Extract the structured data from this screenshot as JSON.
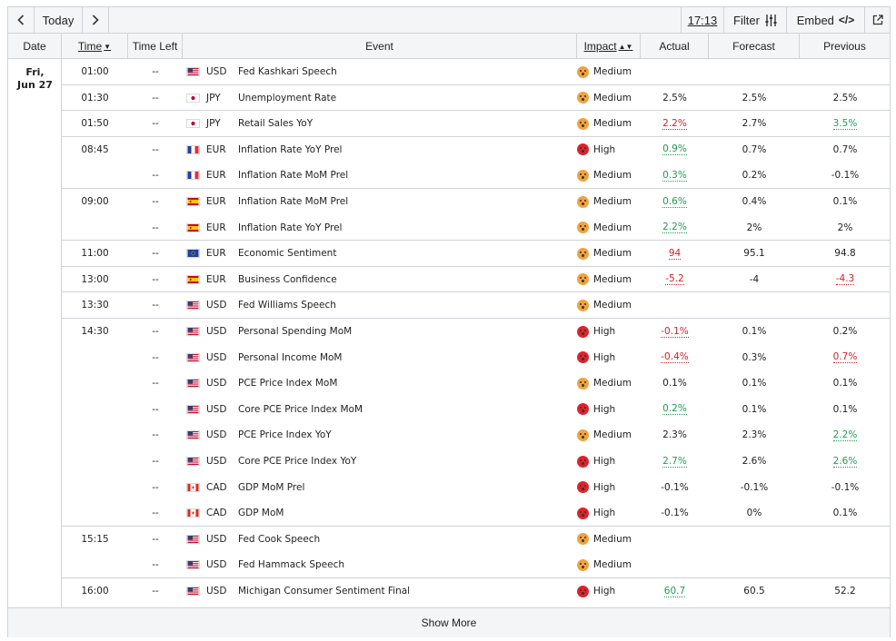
{
  "toolbar": {
    "today_label": "Today",
    "time_label": "17:13",
    "filter_label": "Filter",
    "embed_label": "Embed",
    "embed_code": "</>"
  },
  "columns": {
    "date": "Date",
    "time": "Time",
    "time_left": "Time Left",
    "event": "Event",
    "impact": "Impact",
    "actual": "Actual",
    "forecast": "Forecast",
    "previous": "Previous"
  },
  "date_group": {
    "line1": "Fri,",
    "line2": "Jun 27"
  },
  "groups": [
    {
      "time": "01:00",
      "rows": [
        {
          "time_left": "--",
          "flag": "us",
          "currency": "USD",
          "event": "Fed Kashkari Speech",
          "impact": "medium",
          "impact_label": "Medium",
          "actual": "",
          "actual_color": "",
          "forecast": "",
          "previous": "",
          "previous_color": ""
        }
      ]
    },
    {
      "time": "01:30",
      "rows": [
        {
          "time_left": "--",
          "flag": "jp",
          "currency": "JPY",
          "event": "Unemployment Rate",
          "impact": "medium",
          "impact_label": "Medium",
          "actual": "2.5%",
          "actual_color": "",
          "forecast": "2.5%",
          "previous": "2.5%",
          "previous_color": ""
        }
      ]
    },
    {
      "time": "01:50",
      "rows": [
        {
          "time_left": "--",
          "flag": "jp",
          "currency": "JPY",
          "event": "Retail Sales YoY",
          "impact": "medium",
          "impact_label": "Medium",
          "actual": "2.2%",
          "actual_color": "red",
          "forecast": "2.7%",
          "previous": "3.5%",
          "previous_color": "green"
        }
      ]
    },
    {
      "time": "08:45",
      "rows": [
        {
          "time_left": "--",
          "flag": "fr",
          "currency": "EUR",
          "event": "Inflation Rate YoY Prel",
          "impact": "high",
          "impact_label": "High",
          "actual": "0.9%",
          "actual_color": "green",
          "forecast": "0.7%",
          "previous": "0.7%",
          "previous_color": ""
        },
        {
          "time_left": "--",
          "flag": "fr",
          "currency": "EUR",
          "event": "Inflation Rate MoM Prel",
          "impact": "medium",
          "impact_label": "Medium",
          "actual": "0.3%",
          "actual_color": "green",
          "forecast": "0.2%",
          "previous": "-0.1%",
          "previous_color": ""
        }
      ]
    },
    {
      "time": "09:00",
      "rows": [
        {
          "time_left": "--",
          "flag": "es",
          "currency": "EUR",
          "event": "Inflation Rate MoM Prel",
          "impact": "medium",
          "impact_label": "Medium",
          "actual": "0.6%",
          "actual_color": "green",
          "forecast": "0.4%",
          "previous": "0.1%",
          "previous_color": ""
        },
        {
          "time_left": "--",
          "flag": "es",
          "currency": "EUR",
          "event": "Inflation Rate YoY Prel",
          "impact": "medium",
          "impact_label": "Medium",
          "actual": "2.2%",
          "actual_color": "green",
          "forecast": "2%",
          "previous": "2%",
          "previous_color": ""
        }
      ]
    },
    {
      "time": "11:00",
      "rows": [
        {
          "time_left": "--",
          "flag": "eu",
          "currency": "EUR",
          "event": "Economic Sentiment",
          "impact": "medium",
          "impact_label": "Medium",
          "actual": "94",
          "actual_color": "red",
          "forecast": "95.1",
          "previous": "94.8",
          "previous_color": ""
        }
      ]
    },
    {
      "time": "13:00",
      "rows": [
        {
          "time_left": "--",
          "flag": "es",
          "currency": "EUR",
          "event": "Business Confidence",
          "impact": "medium",
          "impact_label": "Medium",
          "actual": "-5.2",
          "actual_color": "red",
          "forecast": "-4",
          "previous": "-4.3",
          "previous_color": "red"
        }
      ]
    },
    {
      "time": "13:30",
      "rows": [
        {
          "time_left": "--",
          "flag": "us",
          "currency": "USD",
          "event": "Fed Williams Speech",
          "impact": "medium",
          "impact_label": "Medium",
          "actual": "",
          "actual_color": "",
          "forecast": "",
          "previous": "",
          "previous_color": ""
        }
      ]
    },
    {
      "time": "14:30",
      "rows": [
        {
          "time_left": "--",
          "flag": "us",
          "currency": "USD",
          "event": "Personal Spending MoM",
          "impact": "high",
          "impact_label": "High",
          "actual": "-0.1%",
          "actual_color": "red",
          "forecast": "0.1%",
          "previous": "0.2%",
          "previous_color": ""
        },
        {
          "time_left": "--",
          "flag": "us",
          "currency": "USD",
          "event": "Personal Income MoM",
          "impact": "high",
          "impact_label": "High",
          "actual": "-0.4%",
          "actual_color": "red",
          "forecast": "0.3%",
          "previous": "0.7%",
          "previous_color": "red"
        },
        {
          "time_left": "--",
          "flag": "us",
          "currency": "USD",
          "event": "PCE Price Index MoM",
          "impact": "medium",
          "impact_label": "Medium",
          "actual": "0.1%",
          "actual_color": "",
          "forecast": "0.1%",
          "previous": "0.1%",
          "previous_color": ""
        },
        {
          "time_left": "--",
          "flag": "us",
          "currency": "USD",
          "event": "Core PCE Price Index MoM",
          "impact": "high",
          "impact_label": "High",
          "actual": "0.2%",
          "actual_color": "green",
          "forecast": "0.1%",
          "previous": "0.1%",
          "previous_color": ""
        },
        {
          "time_left": "--",
          "flag": "us",
          "currency": "USD",
          "event": "PCE Price Index YoY",
          "impact": "medium",
          "impact_label": "Medium",
          "actual": "2.3%",
          "actual_color": "",
          "forecast": "2.3%",
          "previous": "2.2%",
          "previous_color": "green"
        },
        {
          "time_left": "--",
          "flag": "us",
          "currency": "USD",
          "event": "Core PCE Price Index YoY",
          "impact": "high",
          "impact_label": "High",
          "actual": "2.7%",
          "actual_color": "green",
          "forecast": "2.6%",
          "previous": "2.6%",
          "previous_color": "green"
        },
        {
          "time_left": "--",
          "flag": "ca",
          "currency": "CAD",
          "event": "GDP MoM Prel",
          "impact": "high",
          "impact_label": "High",
          "actual": "-0.1%",
          "actual_color": "",
          "forecast": "-0.1%",
          "previous": "-0.1%",
          "previous_color": ""
        },
        {
          "time_left": "--",
          "flag": "ca",
          "currency": "CAD",
          "event": "GDP MoM",
          "impact": "high",
          "impact_label": "High",
          "actual": "-0.1%",
          "actual_color": "",
          "forecast": "0%",
          "previous": "0.1%",
          "previous_color": ""
        }
      ]
    },
    {
      "time": "15:15",
      "rows": [
        {
          "time_left": "--",
          "flag": "us",
          "currency": "USD",
          "event": "Fed Cook Speech",
          "impact": "medium",
          "impact_label": "Medium",
          "actual": "",
          "actual_color": "",
          "forecast": "",
          "previous": "",
          "previous_color": ""
        },
        {
          "time_left": "--",
          "flag": "us",
          "currency": "USD",
          "event": "Fed Hammack Speech",
          "impact": "medium",
          "impact_label": "Medium",
          "actual": "",
          "actual_color": "",
          "forecast": "",
          "previous": "",
          "previous_color": ""
        }
      ]
    },
    {
      "time": "16:00",
      "rows": [
        {
          "time_left": "--",
          "flag": "us",
          "currency": "USD",
          "event": "Michigan Consumer Sentiment Final",
          "impact": "high",
          "impact_label": "High",
          "actual": "60.7",
          "actual_color": "green",
          "forecast": "60.5",
          "previous": "52.2",
          "previous_color": ""
        }
      ]
    }
  ],
  "colors": {
    "green": "#1f9d55",
    "red": "#d32229",
    "medium": "#f2a23c",
    "high": "#e0222a",
    "border": "#cfd3d8",
    "header_bg": "#f4f5f6"
  },
  "footer": {
    "show_more": "Show More"
  }
}
